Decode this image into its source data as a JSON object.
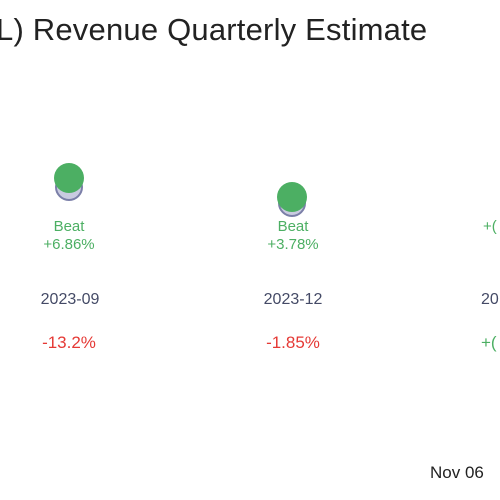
{
  "title": "L) Revenue Quarterly Estimate",
  "footer": {
    "date": "Nov 06"
  },
  "colors": {
    "beat": "#4caf63",
    "negative": "#e53935",
    "estimate_fill": "#c9cbe0",
    "estimate_stroke": "#7b7fa8",
    "period_text": "#444a66"
  },
  "chart_data": {
    "type": "scatter",
    "periods": [
      "2023-09",
      "2023-12",
      "20"
    ],
    "series": [
      {
        "name": "",
        "values": [
          1.0,
          0.85,
          null
        ]
      }
    ],
    "results": [
      {
        "period": "2023-09",
        "label": "Beat",
        "surprise": "+6.86%",
        "growth": "-13.2%",
        "growth_positive": false
      },
      {
        "period": "2023-12",
        "label": "Beat",
        "surprise": "+3.78%",
        "growth": "-1.85%",
        "growth_positive": false
      },
      {
        "period": "20",
        "label": "",
        "surprise": "+(",
        "growth": "+(",
        "growth_positive": true
      }
    ]
  }
}
